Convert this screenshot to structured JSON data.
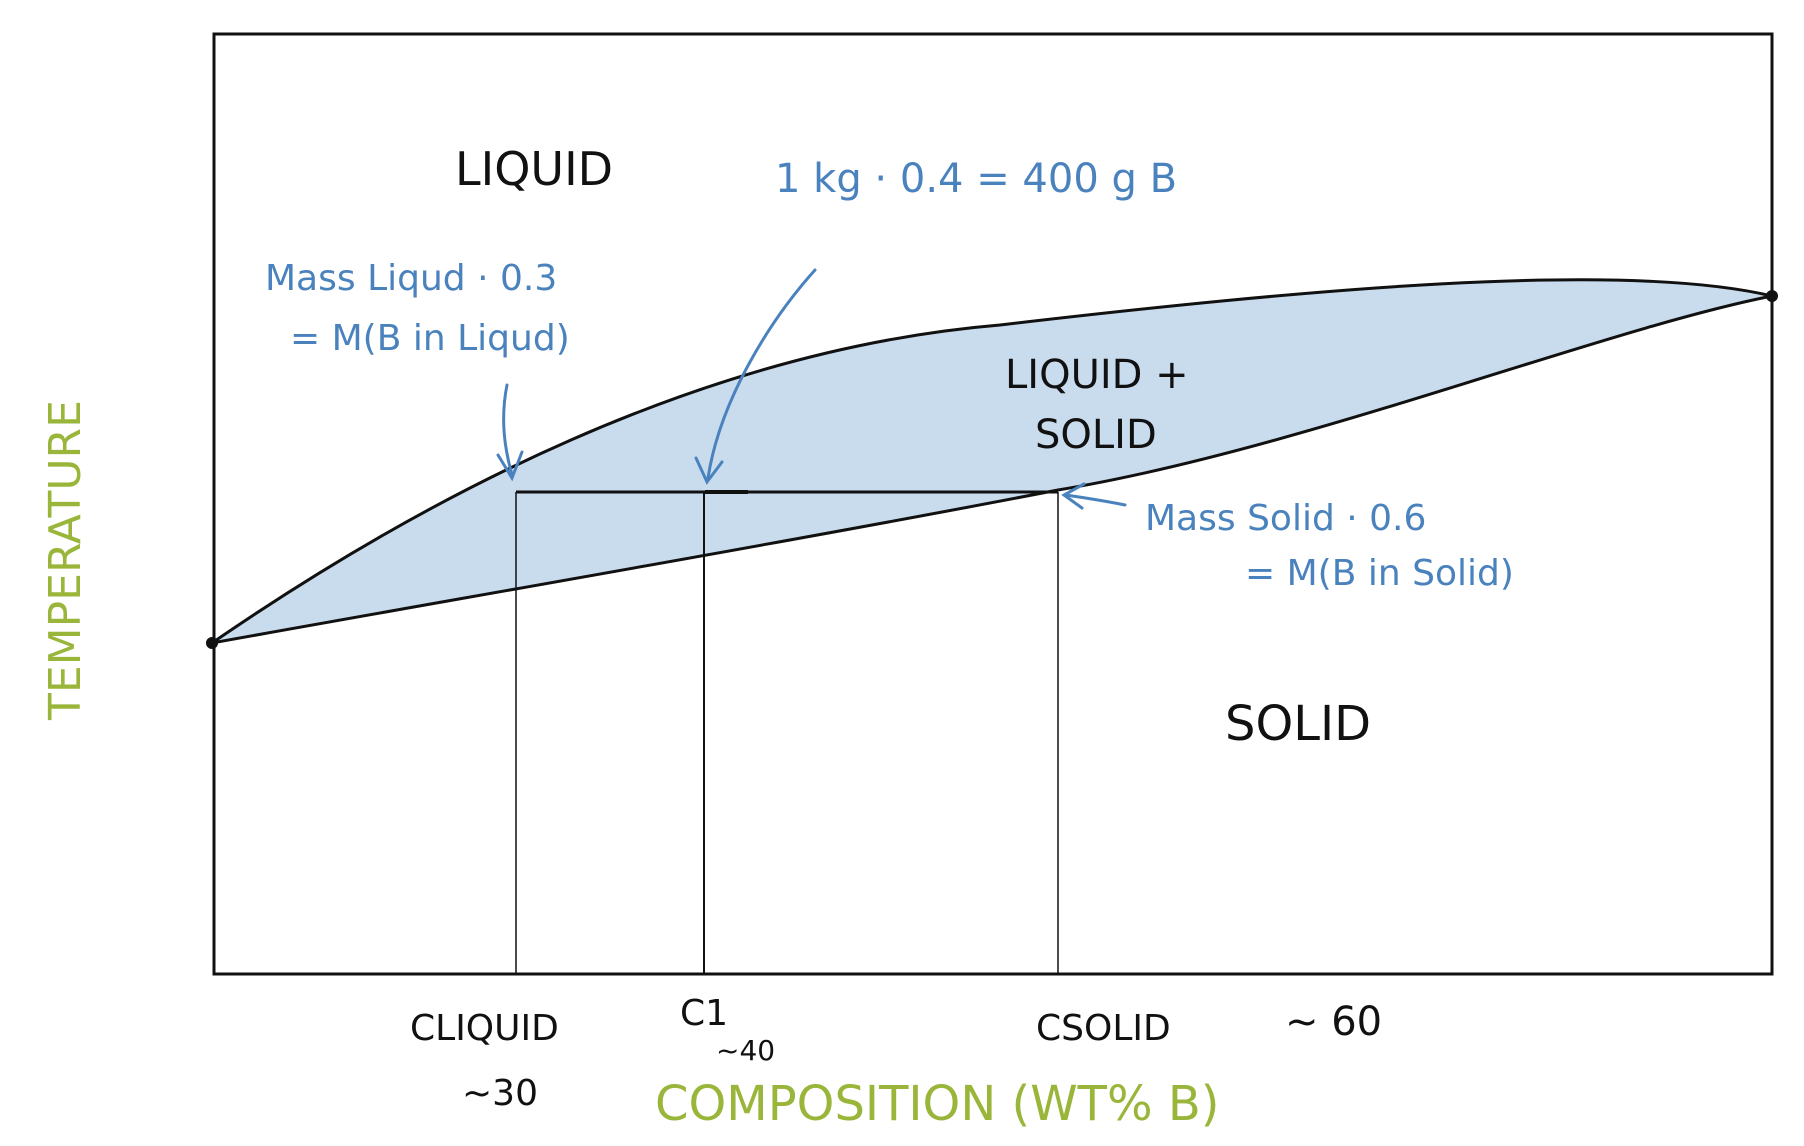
{
  "axes": {
    "y_label": "TEMPERATURE",
    "x_label": "COMPOSITION (WT% B)"
  },
  "regions": {
    "liquid": "LIQUID",
    "two_phase_line1": "LIQUID +",
    "two_phase_line2": "SOLID",
    "solid": "SOLID"
  },
  "annotations": {
    "overall_mass_b": "1 kg · 0.4 = 400 g B",
    "liquid_note_line1": "Mass Liqud · 0.3",
    "liquid_note_line2": "= M(B in Liqud)",
    "solid_note_line1": "Mass Solid · 0.6",
    "solid_note_line2": "= M(B in Solid)"
  },
  "x_markers": {
    "c_liquid": "CLIQUID",
    "c_liquid_value": "~30",
    "c1": "C1",
    "c1_value": "~40",
    "c_solid": "CSOLID",
    "c_solid_value": "~ 60"
  },
  "colors": {
    "two_phase_fill": "#c9dcee",
    "annotation_blue": "#4a82bd",
    "axis_label_green": "#9ab63a",
    "ink": "#111111"
  }
}
